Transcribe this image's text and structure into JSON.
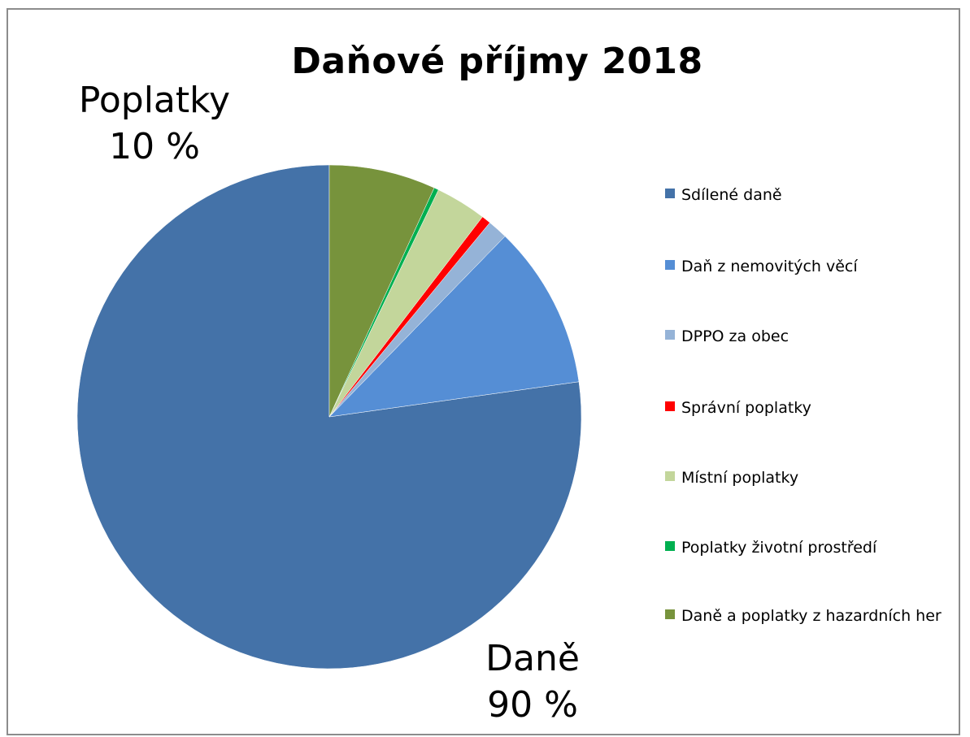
{
  "chart_data": {
    "type": "pie",
    "title": "Daňové příjmy 2018",
    "categories": [
      "Sdílené daně",
      "Daň z nemovitých věcí",
      "DPPO za obec",
      "Správní poplatky",
      "Místní poplatky",
      "Poplatky životní prostředí",
      "Daně a poplatky z hazardních her"
    ],
    "values": [
      78.0,
      10.6,
      1.3,
      0.6,
      3.3,
      0.3,
      6.9
    ],
    "colors": [
      "#4472A8",
      "#558ED5",
      "#95B3D7",
      "#FF0000",
      "#C3D69B",
      "#00B050",
      "#77933C"
    ],
    "legend_position": "right",
    "callouts": [
      {
        "label": "Poplatky",
        "value": "10 %"
      },
      {
        "label": "Daně",
        "value": "90 %"
      }
    ]
  }
}
